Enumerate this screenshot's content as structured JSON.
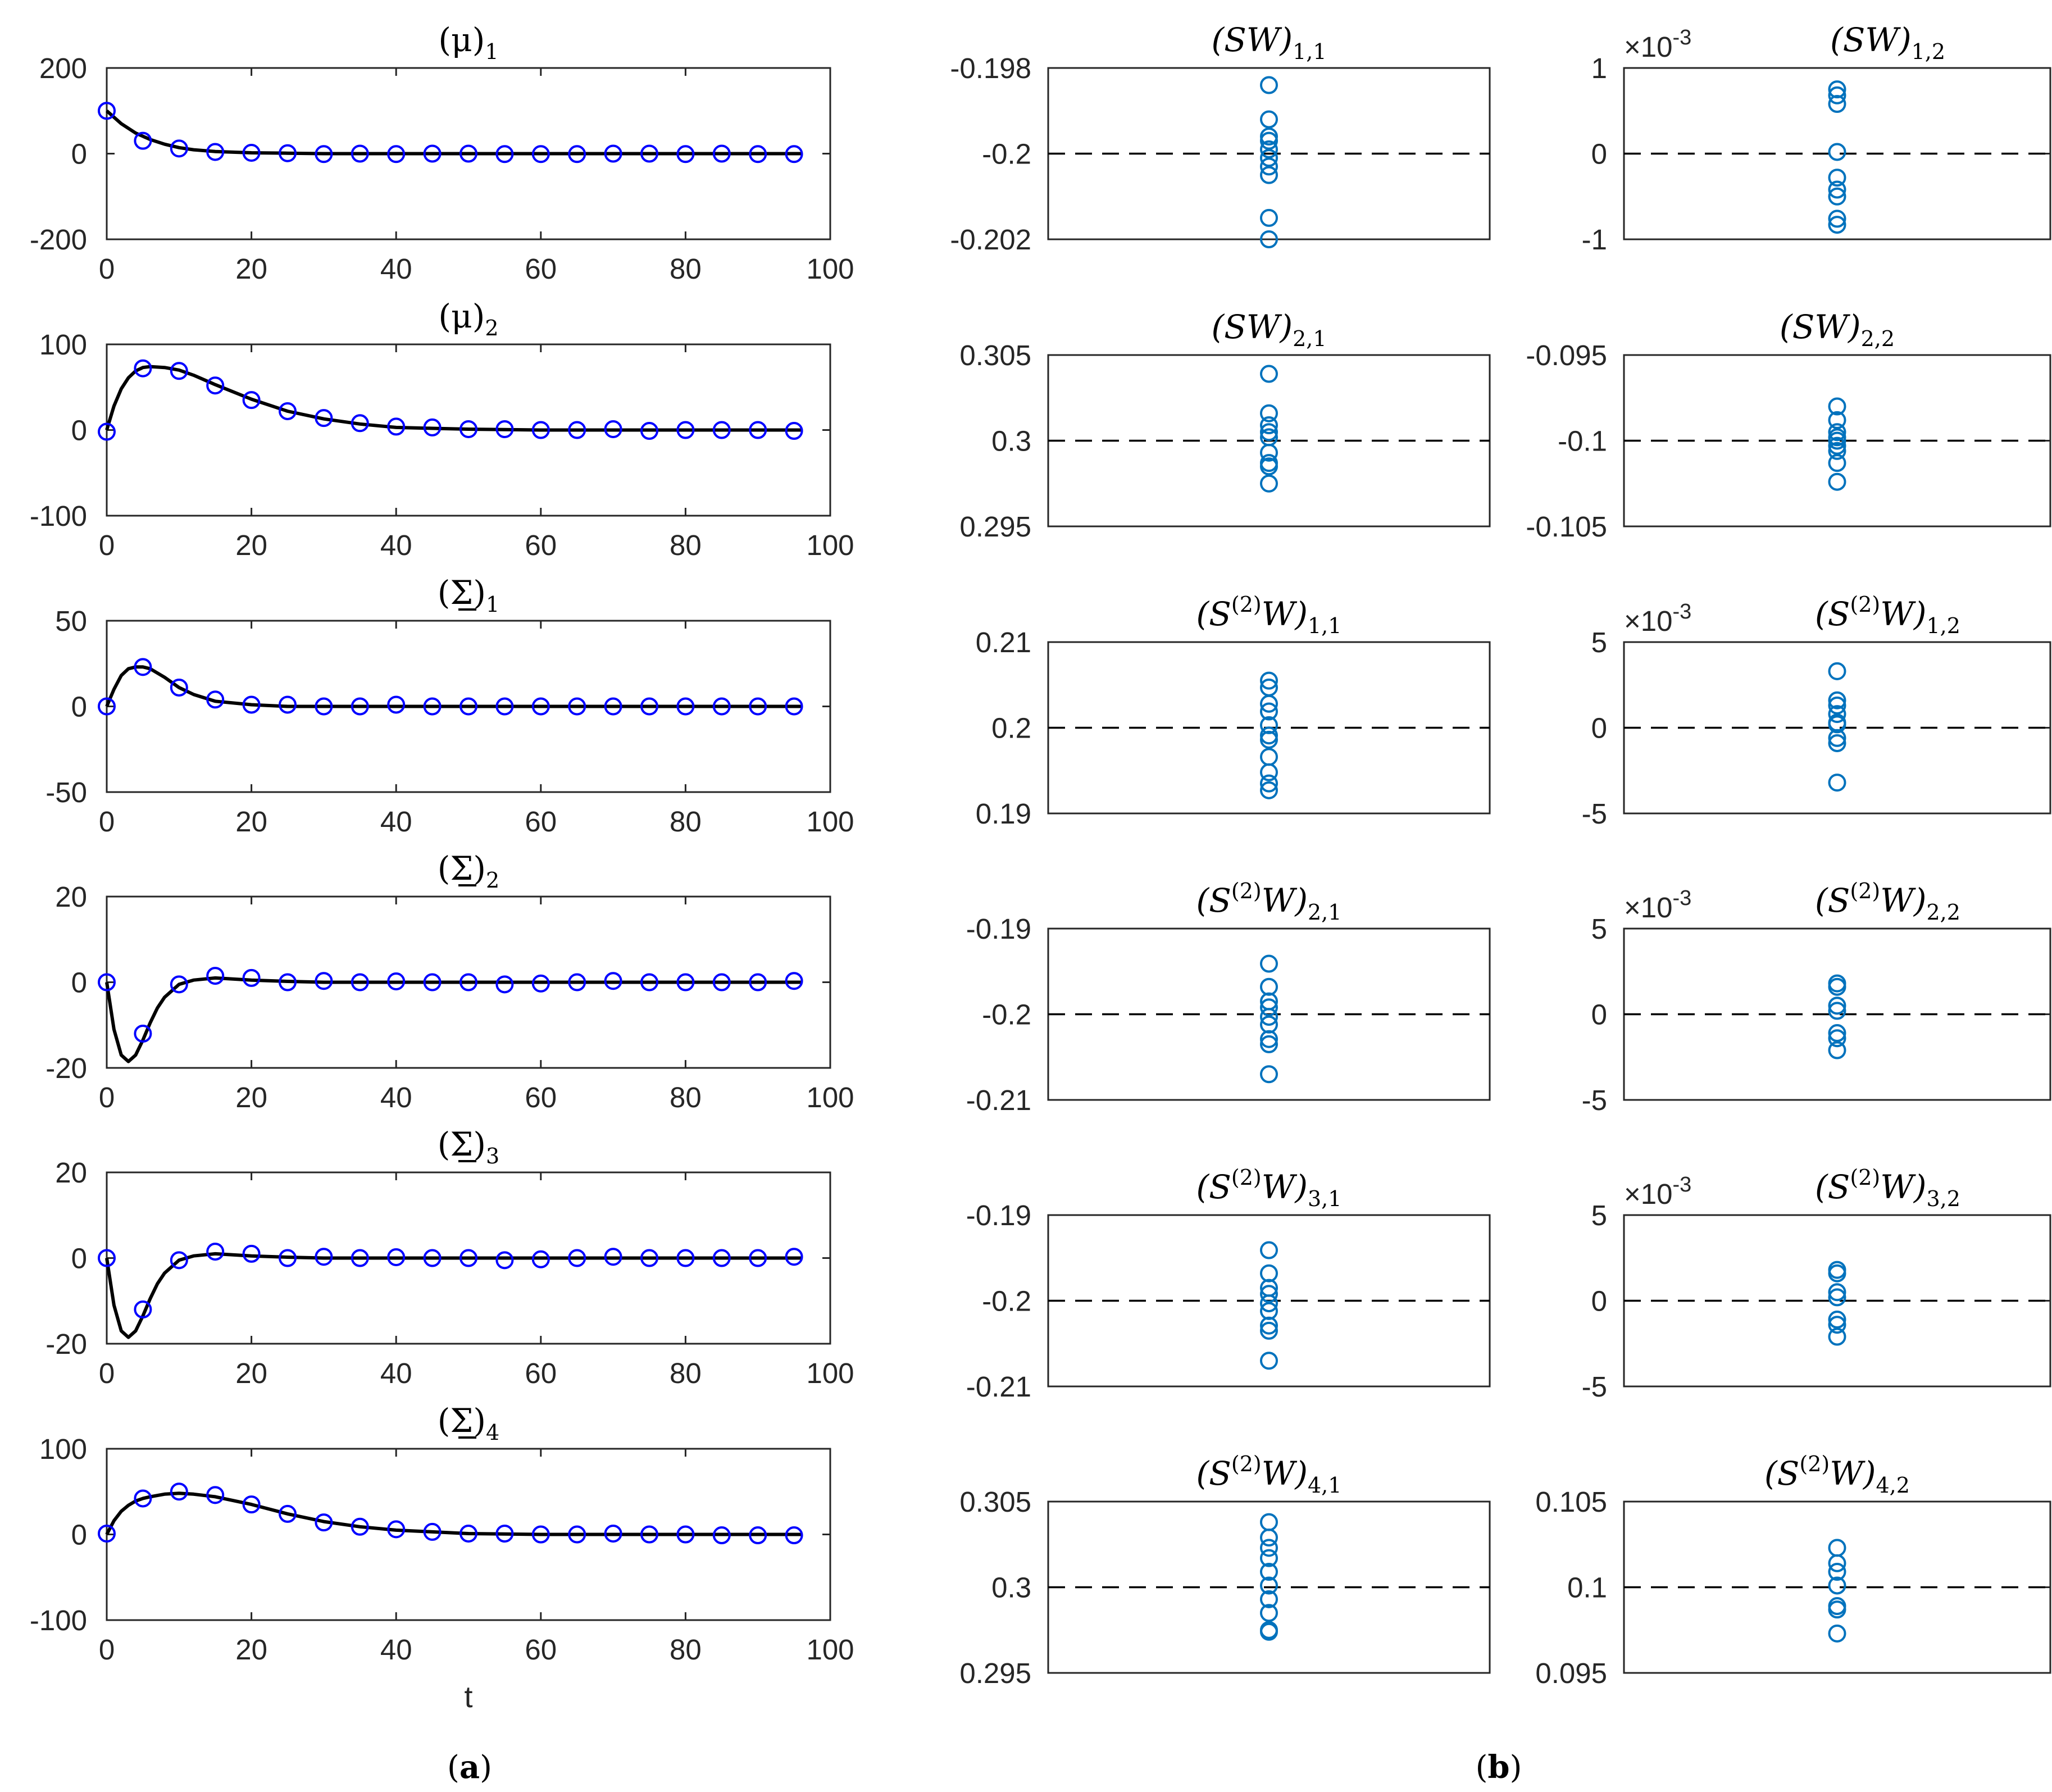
{
  "chart_data": [
    {
      "type": "line",
      "panel": "a",
      "title": {
        "base": "(μ)",
        "sub": "1",
        "underline": false
      },
      "xlim": [
        0,
        100
      ],
      "ylim": [
        -200,
        200
      ],
      "xticks": [
        "0",
        "20",
        "40",
        "60",
        "80",
        "100"
      ],
      "yticks": [
        "200",
        "0",
        "-200"
      ],
      "yticks_values": [
        200,
        0,
        -200
      ],
      "xlabel": "",
      "series": [
        {
          "kind": "curve",
          "color": "#000000",
          "x": [
            0,
            2,
            4,
            6,
            8,
            10,
            12,
            15,
            20,
            25,
            30,
            40,
            50,
            60,
            70,
            80,
            90,
            96
          ],
          "y": [
            100,
            70,
            48,
            33,
            22,
            14,
            9,
            5,
            2,
            1,
            0,
            0,
            0,
            0,
            0,
            0,
            0,
            0
          ]
        },
        {
          "kind": "markers",
          "color": "#0000ff",
          "x": [
            0,
            5,
            10,
            15,
            20,
            25,
            30,
            35,
            40,
            45,
            50,
            55,
            60,
            65,
            70,
            75,
            80,
            85,
            90,
            95
          ],
          "y": [
            100,
            30,
            12,
            4,
            2,
            1,
            -1,
            0,
            -1,
            0,
            0,
            -1,
            -1,
            -1,
            0,
            0,
            -1,
            0,
            -1,
            -1
          ]
        }
      ]
    },
    {
      "type": "line",
      "panel": "a",
      "title": {
        "base": "(μ)",
        "sub": "2",
        "underline": false
      },
      "xlim": [
        0,
        100
      ],
      "ylim": [
        -100,
        100
      ],
      "xticks": [
        "0",
        "20",
        "40",
        "60",
        "80",
        "100"
      ],
      "yticks": [
        "100",
        "0",
        "-100"
      ],
      "yticks_values": [
        100,
        0,
        -100
      ],
      "xlabel": "",
      "series": [
        {
          "kind": "curve",
          "color": "#000000",
          "x": [
            0,
            1,
            2,
            3,
            4,
            5,
            6,
            8,
            10,
            12,
            15,
            20,
            25,
            30,
            35,
            40,
            45,
            50,
            60,
            70,
            80,
            96
          ],
          "y": [
            0,
            28,
            48,
            61,
            69,
            73,
            74,
            73,
            70,
            64,
            53,
            36,
            22,
            13,
            7,
            3,
            2,
            1,
            0,
            0,
            0,
            0
          ]
        },
        {
          "kind": "markers",
          "color": "#0000ff",
          "x": [
            0,
            5,
            10,
            15,
            20,
            25,
            30,
            35,
            40,
            45,
            50,
            55,
            60,
            65,
            70,
            75,
            80,
            85,
            90,
            95
          ],
          "y": [
            -2,
            72,
            69,
            52,
            35,
            22,
            14,
            8,
            4,
            3,
            1,
            1,
            0,
            0,
            1,
            -1,
            0,
            0,
            0,
            -1
          ]
        }
      ]
    },
    {
      "type": "line",
      "panel": "a",
      "title": {
        "base": "(Σ)",
        "sub": "1",
        "underline": true
      },
      "xlim": [
        0,
        100
      ],
      "ylim": [
        -50,
        50
      ],
      "xticks": [
        "0",
        "20",
        "40",
        "60",
        "80",
        "100"
      ],
      "yticks": [
        "50",
        "0",
        "-50"
      ],
      "yticks_values": [
        50,
        0,
        -50
      ],
      "xlabel": "",
      "series": [
        {
          "kind": "curve",
          "color": "#000000",
          "x": [
            0,
            1,
            2,
            3,
            4,
            5,
            6,
            8,
            10,
            12,
            15,
            20,
            25,
            30,
            40,
            50,
            60,
            70,
            80,
            96
          ],
          "y": [
            0,
            10,
            18,
            22,
            23,
            23,
            22,
            17,
            11,
            7,
            3,
            1,
            0,
            0,
            0,
            0,
            0,
            0,
            0,
            0
          ]
        },
        {
          "kind": "markers",
          "color": "#0000ff",
          "x": [
            0,
            5,
            10,
            15,
            20,
            25,
            30,
            35,
            40,
            45,
            50,
            55,
            60,
            65,
            70,
            75,
            80,
            85,
            90,
            95
          ],
          "y": [
            0,
            23,
            11,
            4,
            1,
            1,
            0,
            0,
            1,
            0,
            0,
            0,
            0,
            0,
            0,
            0,
            0,
            0,
            0,
            0
          ]
        }
      ]
    },
    {
      "type": "line",
      "panel": "a",
      "title": {
        "base": "(Σ)",
        "sub": "2",
        "underline": true
      },
      "xlim": [
        0,
        100
      ],
      "ylim": [
        -20,
        20
      ],
      "xticks": [
        "0",
        "20",
        "40",
        "60",
        "80",
        "100"
      ],
      "yticks": [
        "20",
        "0",
        "-20"
      ],
      "yticks_values": [
        20,
        0,
        -20
      ],
      "xlabel": "",
      "series": [
        {
          "kind": "curve",
          "color": "#000000",
          "x": [
            0,
            1,
            2,
            3,
            4,
            5,
            6,
            7,
            8,
            10,
            12,
            15,
            20,
            25,
            30,
            40,
            50,
            60,
            70,
            80,
            96
          ],
          "y": [
            0,
            -11,
            -17,
            -18.5,
            -17,
            -13.5,
            -9.5,
            -6,
            -3.5,
            -0.5,
            0.5,
            1,
            0.5,
            0.2,
            0,
            0,
            0,
            0,
            0,
            0,
            0
          ]
        },
        {
          "kind": "markers",
          "color": "#0000ff",
          "x": [
            0,
            5,
            10,
            15,
            20,
            25,
            30,
            35,
            40,
            45,
            50,
            55,
            60,
            65,
            70,
            75,
            80,
            85,
            90,
            95
          ],
          "y": [
            0,
            -12,
            -0.5,
            1.5,
            1,
            0,
            0.3,
            0,
            0.2,
            0,
            0,
            -0.5,
            -0.3,
            0,
            0.3,
            0,
            0,
            0,
            0,
            0.3
          ]
        }
      ]
    },
    {
      "type": "line",
      "panel": "a",
      "title": {
        "base": "(Σ)",
        "sub": "3",
        "underline": true
      },
      "xlim": [
        0,
        100
      ],
      "ylim": [
        -20,
        20
      ],
      "xticks": [
        "0",
        "20",
        "40",
        "60",
        "80",
        "100"
      ],
      "yticks": [
        "20",
        "0",
        "-20"
      ],
      "yticks_values": [
        20,
        0,
        -20
      ],
      "xlabel": "",
      "series": [
        {
          "kind": "curve",
          "color": "#000000",
          "x": [
            0,
            1,
            2,
            3,
            4,
            5,
            6,
            7,
            8,
            10,
            12,
            15,
            20,
            25,
            30,
            40,
            50,
            60,
            70,
            80,
            96
          ],
          "y": [
            0,
            -11,
            -17,
            -18.5,
            -17,
            -13.5,
            -9.5,
            -6,
            -3.5,
            -0.5,
            0.5,
            1,
            0.5,
            0.2,
            0,
            0,
            0,
            0,
            0,
            0,
            0
          ]
        },
        {
          "kind": "markers",
          "color": "#0000ff",
          "x": [
            0,
            5,
            10,
            15,
            20,
            25,
            30,
            35,
            40,
            45,
            50,
            55,
            60,
            65,
            70,
            75,
            80,
            85,
            90,
            95
          ],
          "y": [
            0,
            -12,
            -0.5,
            1.5,
            1,
            0,
            0.3,
            0,
            0.2,
            0,
            0,
            -0.5,
            -0.3,
            0,
            0.3,
            0,
            0,
            0,
            0,
            0.3
          ]
        }
      ]
    },
    {
      "type": "line",
      "panel": "a",
      "title": {
        "base": "(Σ)",
        "sub": "4",
        "underline": true
      },
      "xlim": [
        0,
        100
      ],
      "ylim": [
        -100,
        100
      ],
      "xticks": [
        "0",
        "20",
        "40",
        "60",
        "80",
        "100"
      ],
      "yticks": [
        "100",
        "0",
        "-100"
      ],
      "yticks_values": [
        100,
        0,
        -100
      ],
      "xlabel": "t",
      "series": [
        {
          "kind": "curve",
          "color": "#000000",
          "x": [
            0,
            1,
            2,
            3,
            4,
            5,
            6,
            8,
            10,
            12,
            15,
            20,
            25,
            30,
            35,
            40,
            45,
            50,
            60,
            70,
            80,
            96
          ],
          "y": [
            0,
            16,
            27,
            34,
            39,
            42,
            44,
            47,
            48,
            47,
            44,
            35,
            24,
            15,
            9,
            5,
            3,
            1,
            0,
            0,
            0,
            0
          ]
        },
        {
          "kind": "markers",
          "color": "#0000ff",
          "x": [
            0,
            5,
            10,
            15,
            20,
            25,
            30,
            35,
            40,
            45,
            50,
            55,
            60,
            65,
            70,
            75,
            80,
            85,
            90,
            95
          ],
          "y": [
            1,
            42,
            50,
            46,
            35,
            24,
            14,
            9,
            6,
            3,
            1,
            1,
            0,
            0,
            1,
            0,
            0,
            -1,
            -1,
            -1
          ]
        }
      ]
    },
    {
      "type": "scatter",
      "panel": "b",
      "title": {
        "base": "(SW)",
        "sup": "",
        "sub": "1,1"
      },
      "ylim": [
        -0.202,
        -0.198
      ],
      "yticks": [
        "-0.198",
        "-0.2",
        "-0.202"
      ],
      "yticks_values": [
        -0.198,
        -0.2,
        -0.202
      ],
      "exponent": "",
      "ref": -0.2,
      "values": [
        -0.1984,
        -0.1992,
        -0.1996,
        -0.1997,
        -0.1999,
        -0.2001,
        -0.2003,
        -0.2005,
        -0.2015,
        -0.202
      ]
    },
    {
      "type": "scatter",
      "panel": "b",
      "title": {
        "base": "(SW)",
        "sup": "",
        "sub": "1,2"
      },
      "ylim": [
        -1,
        1
      ],
      "yticks": [
        "1",
        "0",
        "-1"
      ],
      "yticks_values": [
        1,
        0,
        -1
      ],
      "exponent": "-3",
      "ref": 0,
      "values": [
        0.75,
        0.68,
        0.58,
        0.02,
        -0.28,
        -0.42,
        -0.5,
        -0.76,
        -0.83
      ]
    },
    {
      "type": "scatter",
      "panel": "b",
      "title": {
        "base": "(SW)",
        "sup": "",
        "sub": "2,1"
      },
      "ylim": [
        0.295,
        0.305
      ],
      "yticks": [
        "0.305",
        "0.3",
        "0.295"
      ],
      "yticks_values": [
        0.305,
        0.3,
        0.295
      ],
      "exponent": "",
      "ref": 0.3,
      "values": [
        0.3039,
        0.3016,
        0.3009,
        0.3005,
        0.3002,
        0.2993,
        0.2987,
        0.2985,
        0.2975
      ]
    },
    {
      "type": "scatter",
      "panel": "b",
      "title": {
        "base": "(SW)",
        "sup": "",
        "sub": "2,2"
      },
      "ylim": [
        -0.105,
        -0.095
      ],
      "yticks": [
        "-0.095",
        "-0.1",
        "-0.105"
      ],
      "yticks_values": [
        -0.095,
        -0.1,
        -0.105
      ],
      "exponent": "",
      "ref": -0.1,
      "values": [
        -0.098,
        -0.0988,
        -0.0995,
        -0.0998,
        -0.1,
        -0.1003,
        -0.1006,
        -0.1013,
        -0.1024
      ]
    },
    {
      "type": "scatter",
      "panel": "b",
      "title": {
        "base": "(S",
        "sup": "(2)",
        "sub": "1,1",
        "tail": "W)"
      },
      "ylim": [
        0.19,
        0.21
      ],
      "yticks": [
        "0.21",
        "0.2",
        "0.19"
      ],
      "yticks_values": [
        0.21,
        0.2,
        0.19
      ],
      "exponent": "",
      "ref": 0.2,
      "values": [
        0.2055,
        0.2047,
        0.2028,
        0.2019,
        0.2003,
        0.1991,
        0.1986,
        0.1966,
        0.1948,
        0.1935,
        0.1927
      ]
    },
    {
      "type": "scatter",
      "panel": "b",
      "title": {
        "base": "(S",
        "sup": "(2)",
        "sub": "1,2",
        "tail": "W)"
      },
      "ylim": [
        -5,
        5
      ],
      "yticks": [
        "5",
        "0",
        "-5"
      ],
      "yticks_values": [
        5,
        0,
        -5
      ],
      "exponent": "-3",
      "ref": 0,
      "values": [
        3.3,
        1.6,
        1.3,
        0.8,
        0.3,
        0.2,
        -0.6,
        -0.9,
        -3.2
      ]
    },
    {
      "type": "scatter",
      "panel": "b",
      "title": {
        "base": "(S",
        "sup": "(2)",
        "sub": "2,1",
        "tail": "W)"
      },
      "ylim": [
        -0.21,
        -0.19
      ],
      "yticks": [
        "-0.19",
        "-0.2",
        "-0.21"
      ],
      "yticks_values": [
        -0.19,
        -0.2,
        -0.21
      ],
      "exponent": "",
      "ref": -0.2,
      "values": [
        -0.1941,
        -0.1968,
        -0.1985,
        -0.1992,
        -0.2003,
        -0.2012,
        -0.2029,
        -0.2035,
        -0.207
      ]
    },
    {
      "type": "scatter",
      "panel": "b",
      "title": {
        "base": "(S",
        "sup": "(2)",
        "sub": "2,2",
        "tail": "W)"
      },
      "ylim": [
        -5,
        5
      ],
      "yticks": [
        "5",
        "0",
        "-5"
      ],
      "yticks_values": [
        5,
        0,
        -5
      ],
      "exponent": "-3",
      "ref": 0,
      "values": [
        1.8,
        1.6,
        0.5,
        0.2,
        -1.1,
        -1.4,
        -2.1
      ]
    },
    {
      "type": "scatter",
      "panel": "b",
      "title": {
        "base": "(S",
        "sup": "(2)",
        "sub": "3,1",
        "tail": "W)"
      },
      "ylim": [
        -0.21,
        -0.19
      ],
      "yticks": [
        "-0.19",
        "-0.2",
        "-0.21"
      ],
      "yticks_values": [
        -0.19,
        -0.2,
        -0.21
      ],
      "exponent": "",
      "ref": -0.2,
      "values": [
        -0.1941,
        -0.1968,
        -0.1985,
        -0.1992,
        -0.2003,
        -0.2012,
        -0.2029,
        -0.2035,
        -0.207
      ]
    },
    {
      "type": "scatter",
      "panel": "b",
      "title": {
        "base": "(S",
        "sup": "(2)",
        "sub": "3,2",
        "tail": "W)"
      },
      "ylim": [
        -5,
        5
      ],
      "yticks": [
        "5",
        "0",
        "-5"
      ],
      "yticks_values": [
        5,
        0,
        -5
      ],
      "exponent": "-3",
      "ref": 0,
      "values": [
        1.8,
        1.6,
        0.5,
        0.2,
        -1.1,
        -1.4,
        -2.1
      ]
    },
    {
      "type": "scatter",
      "panel": "b",
      "title": {
        "base": "(S",
        "sup": "(2)",
        "sub": "4,1",
        "tail": "W)"
      },
      "ylim": [
        0.295,
        0.305
      ],
      "yticks": [
        "0.305",
        "0.3",
        "0.295"
      ],
      "yticks_values": [
        0.305,
        0.3,
        0.295
      ],
      "exponent": "",
      "ref": 0.3,
      "values": [
        0.3038,
        0.3029,
        0.3023,
        0.3017,
        0.3009,
        0.3001,
        0.2993,
        0.2985,
        0.2975,
        0.2974
      ]
    },
    {
      "type": "scatter",
      "panel": "b",
      "title": {
        "base": "(S",
        "sup": "(2)",
        "sub": "4,2",
        "tail": "W)"
      },
      "ylim": [
        0.095,
        0.105
      ],
      "yticks": [
        "0.105",
        "0.1",
        "0.095"
      ],
      "yticks_values": [
        0.105,
        0.1,
        0.095
      ],
      "exponent": "",
      "ref": 0.1,
      "values": [
        0.1023,
        0.1014,
        0.1009,
        0.1001,
        0.0989,
        0.0987,
        0.0973
      ]
    }
  ],
  "captions": {
    "a": "a",
    "b": "b"
  },
  "colors": {
    "markers_a": "#0000ff",
    "curve": "#000000",
    "markers_b": "#0072bd",
    "ref_line": "#000000",
    "axes": "#262626"
  }
}
